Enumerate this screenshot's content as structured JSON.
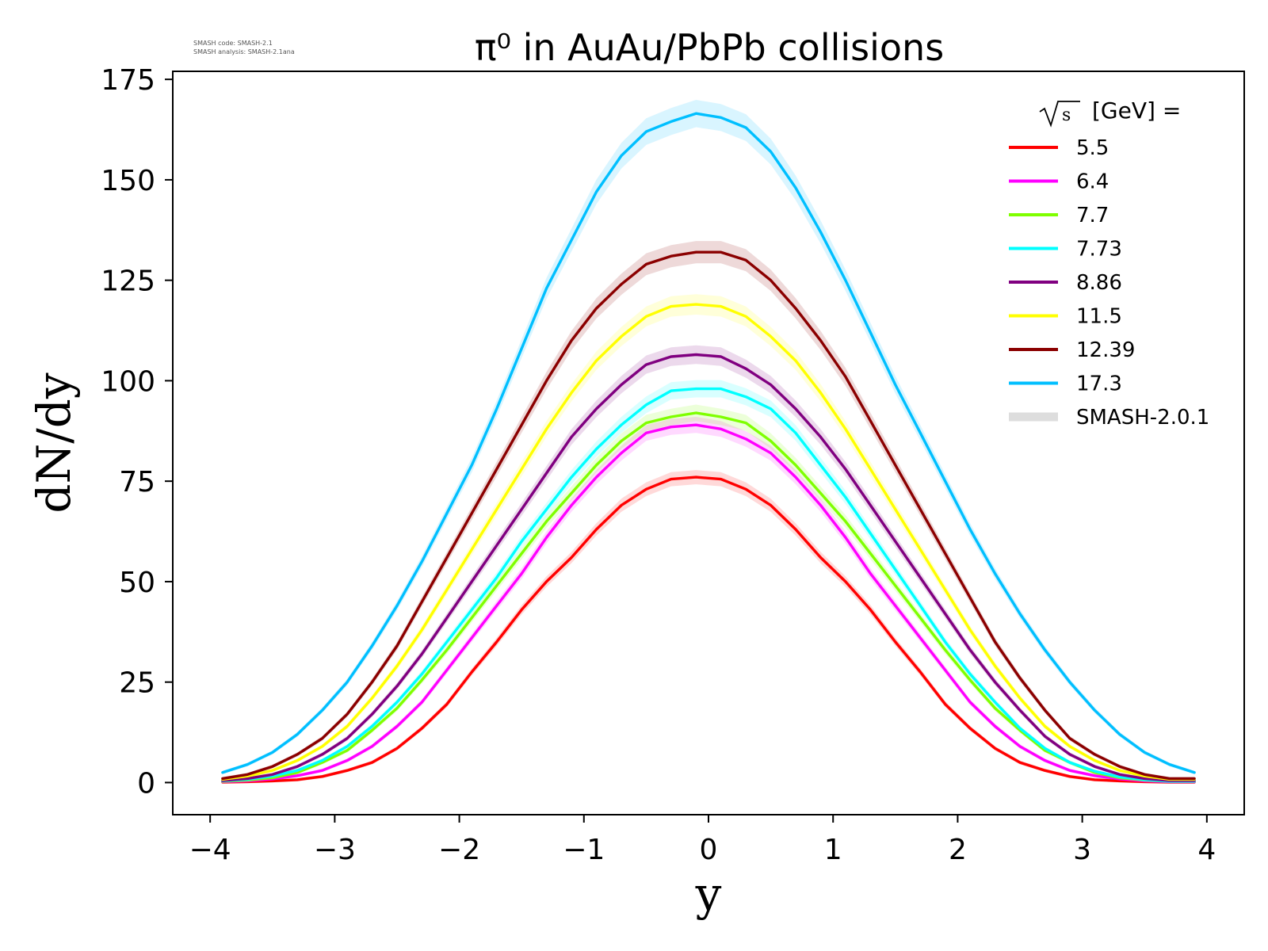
{
  "chart_data": {
    "type": "line",
    "title": "π⁰ in AuAu/PbPb collisions",
    "xlabel": "y",
    "ylabel": "dN/dy",
    "xlim": [
      -4.3,
      4.3
    ],
    "ylim": [
      -8,
      177
    ],
    "xticks": [
      "−4",
      "−3",
      "−2",
      "−1",
      "0",
      "1",
      "2",
      "3",
      "4"
    ],
    "xtick_values": [
      -4,
      -3,
      -2,
      -1,
      0,
      1,
      2,
      3,
      4
    ],
    "yticks": [
      "0",
      "25",
      "50",
      "75",
      "100",
      "125",
      "150",
      "175"
    ],
    "ytick_values": [
      0,
      25,
      50,
      75,
      100,
      125,
      150,
      175
    ],
    "grid": false,
    "legend": {
      "placement": "top-right",
      "title_prefix": "s",
      "title_suffix": "[GeV] =",
      "band_label": "SMASH-2.0.1",
      "band_color": "#dddddd"
    },
    "annotation": {
      "line1": "SMASH code:      SMASH-2.1",
      "line2": "SMASH analysis: SMASH-2.1ana"
    },
    "x": [
      -3.9,
      -3.7,
      -3.5,
      -3.3,
      -3.1,
      -2.9,
      -2.7,
      -2.5,
      -2.3,
      -2.1,
      -1.9,
      -1.7,
      -1.5,
      -1.3,
      -1.1,
      -0.9,
      -0.7,
      -0.5,
      -0.3,
      -0.1,
      0.1,
      0.3,
      0.5,
      0.7,
      0.9,
      1.1,
      1.3,
      1.5,
      1.7,
      1.9,
      2.1,
      2.3,
      2.5,
      2.7,
      2.9,
      3.1,
      3.3,
      3.5,
      3.7,
      3.9
    ],
    "series": [
      {
        "name": "5.5",
        "color": "#ff0000",
        "values": [
          0.1,
          0.2,
          0.4,
          0.7,
          1.5,
          3,
          5,
          8.5,
          13.5,
          19.5,
          27.5,
          35,
          43,
          50,
          56,
          63,
          69,
          73,
          75.5,
          76,
          75.5,
          73,
          69,
          63,
          56,
          50,
          43,
          35,
          27.5,
          19.5,
          13.5,
          8.5,
          5,
          3,
          1.5,
          0.7,
          0.4,
          0.2,
          0.1,
          0.1
        ]
      },
      {
        "name": "6.4",
        "color": "#ff00ff",
        "values": [
          0.2,
          0.4,
          0.9,
          1.7,
          3,
          5.5,
          9,
          14,
          20,
          28,
          36,
          44,
          52,
          61,
          69,
          76,
          82,
          87,
          88.5,
          89,
          88,
          85.5,
          82,
          76,
          69,
          61,
          52,
          44,
          36,
          28,
          20,
          14,
          9,
          5.5,
          3,
          1.7,
          0.9,
          0.4,
          0.2,
          0.2
        ]
      },
      {
        "name": "7.7",
        "color": "#7fff00",
        "values": [
          0.3,
          0.6,
          1.2,
          2.5,
          5,
          8,
          13,
          18.5,
          25.5,
          33,
          41,
          49,
          57,
          65,
          72,
          79,
          85,
          89.5,
          91,
          92,
          91,
          89.5,
          85,
          79,
          72,
          65,
          57,
          49,
          41,
          33,
          25.5,
          18.5,
          13,
          8,
          5,
          2.5,
          1.2,
          0.6,
          0.3,
          0.3
        ]
      },
      {
        "name": "7.73",
        "color": "#00ffff",
        "values": [
          0.4,
          0.8,
          1.6,
          3,
          5.5,
          9,
          14,
          20,
          27,
          35,
          43,
          51,
          60,
          68,
          76,
          83,
          89,
          94,
          97.5,
          98,
          98,
          96,
          93,
          87,
          79,
          71,
          62,
          53,
          44,
          35,
          27,
          20,
          13.5,
          8.5,
          5,
          2.8,
          1.4,
          0.7,
          0.3,
          0.3
        ]
      },
      {
        "name": "8.86",
        "color": "#800080",
        "values": [
          0.5,
          1,
          2,
          4,
          7,
          11,
          17,
          24,
          32,
          41,
          50,
          59,
          68,
          77,
          86,
          93,
          99,
          104,
          106,
          106.5,
          106,
          103,
          99,
          93,
          86,
          78,
          69,
          60,
          51,
          42,
          33,
          25,
          18,
          11.5,
          7,
          4,
          2,
          1,
          0.5,
          0.5
        ]
      },
      {
        "name": "11.5",
        "color": "#ffff00",
        "values": [
          0.8,
          1.6,
          3,
          5.5,
          9,
          14,
          21,
          29,
          38,
          48,
          58,
          68,
          78,
          88,
          97,
          105,
          111,
          116,
          118.5,
          119,
          118.5,
          116,
          111,
          105,
          97,
          88,
          78,
          68,
          58,
          48,
          38,
          29,
          21,
          14,
          9,
          5.5,
          3,
          1.6,
          0.8,
          0.8
        ]
      },
      {
        "name": "12.39",
        "color": "#8b0000",
        "values": [
          1,
          2,
          4,
          7,
          11,
          17,
          25,
          34,
          45,
          56,
          67,
          78,
          89,
          100,
          110,
          118,
          124,
          129,
          131,
          132,
          132,
          130,
          125,
          118,
          110,
          101,
          90,
          79,
          68,
          57,
          46,
          35,
          26,
          18,
          11,
          7,
          4,
          2,
          1,
          1
        ]
      },
      {
        "name": "17.3",
        "color": "#00bfff",
        "values": [
          2.5,
          4.5,
          7.5,
          12,
          18,
          25,
          34,
          44,
          55,
          67,
          79,
          93,
          108,
          123,
          135,
          147,
          156,
          162,
          164.5,
          166.5,
          165.5,
          163,
          157,
          148,
          137,
          125,
          112,
          99,
          87,
          75,
          63,
          52,
          42,
          33,
          25,
          18,
          12,
          7.5,
          4.5,
          2.5
        ]
      }
    ]
  }
}
